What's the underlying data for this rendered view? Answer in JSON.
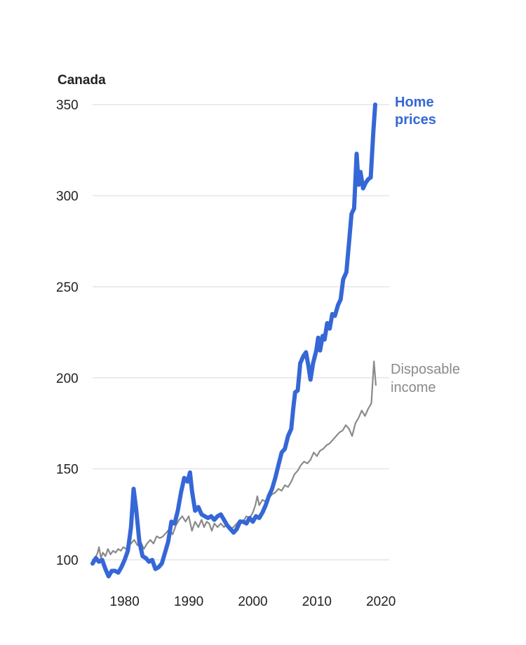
{
  "colors": {
    "home_prices": "#3567d6",
    "disposable_income": "#8a8a8a",
    "grid": "#d9d9d9",
    "text": "#222222"
  },
  "chart_data": {
    "type": "line",
    "title": "Canada",
    "xlabel": "",
    "ylabel": "",
    "xlim": [
      1975,
      2020.3
    ],
    "ylim": [
      86,
      352
    ],
    "x_ticks": [
      1980,
      1990,
      2000,
      2010,
      2020
    ],
    "y_ticks": [
      100,
      150,
      200,
      250,
      300,
      350
    ],
    "grid": true,
    "legend": "direct labels at line ends",
    "series": [
      {
        "key": "home_prices",
        "label_lines": [
          "Home",
          "prices"
        ],
        "points": [
          [
            1975.0,
            98
          ],
          [
            1975.5,
            101
          ],
          [
            1976.0,
            99
          ],
          [
            1976.5,
            100
          ],
          [
            1977.0,
            95
          ],
          [
            1977.5,
            91
          ],
          [
            1978.0,
            94
          ],
          [
            1978.5,
            94
          ],
          [
            1979.0,
            93
          ],
          [
            1979.5,
            96
          ],
          [
            1980.0,
            100
          ],
          [
            1980.5,
            105
          ],
          [
            1981.0,
            118
          ],
          [
            1981.4,
            139
          ],
          [
            1981.8,
            128
          ],
          [
            1982.3,
            110
          ],
          [
            1982.8,
            102
          ],
          [
            1983.3,
            101
          ],
          [
            1983.8,
            99
          ],
          [
            1984.3,
            100
          ],
          [
            1984.8,
            95
          ],
          [
            1985.3,
            96
          ],
          [
            1985.8,
            98
          ],
          [
            1986.3,
            104
          ],
          [
            1986.8,
            110
          ],
          [
            1987.3,
            121
          ],
          [
            1987.8,
            120
          ],
          [
            1988.3,
            127
          ],
          [
            1988.8,
            137
          ],
          [
            1989.3,
            145
          ],
          [
            1989.8,
            143
          ],
          [
            1990.2,
            148
          ],
          [
            1990.5,
            138
          ],
          [
            1991.0,
            127
          ],
          [
            1991.5,
            129
          ],
          [
            1992.0,
            125
          ],
          [
            1992.5,
            124
          ],
          [
            1993.0,
            123
          ],
          [
            1993.5,
            124
          ],
          [
            1994.0,
            122
          ],
          [
            1994.5,
            124
          ],
          [
            1995.0,
            125
          ],
          [
            1995.5,
            122
          ],
          [
            1996.0,
            119
          ],
          [
            1996.5,
            117
          ],
          [
            1997.0,
            115
          ],
          [
            1997.5,
            117
          ],
          [
            1998.0,
            121
          ],
          [
            1998.5,
            121
          ],
          [
            1999.0,
            120
          ],
          [
            1999.5,
            123
          ],
          [
            2000.0,
            121
          ],
          [
            2000.5,
            124
          ],
          [
            2001.0,
            123
          ],
          [
            2001.5,
            126
          ],
          [
            2002.0,
            130
          ],
          [
            2002.5,
            135
          ],
          [
            2003.0,
            139
          ],
          [
            2003.5,
            145
          ],
          [
            2004.0,
            152
          ],
          [
            2004.5,
            159
          ],
          [
            2005.0,
            161
          ],
          [
            2005.5,
            168
          ],
          [
            2006.0,
            172
          ],
          [
            2006.3,
            183
          ],
          [
            2006.6,
            192
          ],
          [
            2007.0,
            193
          ],
          [
            2007.4,
            208
          ],
          [
            2007.9,
            212
          ],
          [
            2008.3,
            214
          ],
          [
            2008.7,
            206
          ],
          [
            2009.0,
            199
          ],
          [
            2009.4,
            208
          ],
          [
            2009.9,
            215
          ],
          [
            2010.2,
            222
          ],
          [
            2010.5,
            215
          ],
          [
            2010.9,
            223
          ],
          [
            2011.2,
            221
          ],
          [
            2011.6,
            230
          ],
          [
            2012.0,
            227
          ],
          [
            2012.4,
            235
          ],
          [
            2012.8,
            234
          ],
          [
            2013.3,
            240
          ],
          [
            2013.7,
            243
          ],
          [
            2014.1,
            254
          ],
          [
            2014.6,
            258
          ],
          [
            2015.0,
            274
          ],
          [
            2015.4,
            290
          ],
          [
            2015.8,
            293
          ],
          [
            2016.2,
            323
          ],
          [
            2016.5,
            306
          ],
          [
            2016.8,
            313
          ],
          [
            2017.2,
            304
          ],
          [
            2017.6,
            307
          ],
          [
            2018.0,
            309
          ],
          [
            2018.4,
            310
          ],
          [
            2018.8,
            335
          ],
          [
            2019.1,
            350
          ]
        ]
      },
      {
        "key": "disposable_income",
        "label_lines": [
          "Disposable",
          "income"
        ],
        "points": [
          [
            1975.0,
            100
          ],
          [
            1975.4,
            101
          ],
          [
            1975.8,
            104
          ],
          [
            1976.0,
            107
          ],
          [
            1976.3,
            101
          ],
          [
            1976.6,
            104
          ],
          [
            1977.0,
            102
          ],
          [
            1977.4,
            106
          ],
          [
            1977.8,
            103
          ],
          [
            1978.2,
            105
          ],
          [
            1978.6,
            104
          ],
          [
            1979.0,
            106
          ],
          [
            1979.4,
            105
          ],
          [
            1979.8,
            107
          ],
          [
            1980.2,
            106
          ],
          [
            1980.6,
            108
          ],
          [
            1981.0,
            109
          ],
          [
            1981.5,
            111
          ],
          [
            1982.0,
            108
          ],
          [
            1982.5,
            110
          ],
          [
            1983.0,
            106
          ],
          [
            1983.5,
            109
          ],
          [
            1984.0,
            111
          ],
          [
            1984.5,
            109
          ],
          [
            1985.0,
            113
          ],
          [
            1985.5,
            112
          ],
          [
            1986.0,
            113
          ],
          [
            1986.5,
            115
          ],
          [
            1987.0,
            117
          ],
          [
            1987.5,
            114
          ],
          [
            1988.0,
            119
          ],
          [
            1988.5,
            122
          ],
          [
            1989.0,
            124
          ],
          [
            1989.5,
            121
          ],
          [
            1990.0,
            124
          ],
          [
            1990.5,
            116
          ],
          [
            1991.0,
            121
          ],
          [
            1991.5,
            118
          ],
          [
            1992.0,
            122
          ],
          [
            1992.4,
            118
          ],
          [
            1992.8,
            121
          ],
          [
            1993.2,
            120
          ],
          [
            1993.6,
            116
          ],
          [
            1994.0,
            120
          ],
          [
            1994.5,
            118
          ],
          [
            1995.0,
            120
          ],
          [
            1995.5,
            118
          ],
          [
            1996.0,
            120
          ],
          [
            1996.5,
            117
          ],
          [
            1997.0,
            118
          ],
          [
            1997.5,
            120
          ],
          [
            1998.0,
            122
          ],
          [
            1998.5,
            121
          ],
          [
            1999.0,
            124
          ],
          [
            1999.5,
            123
          ],
          [
            2000.0,
            126
          ],
          [
            2000.4,
            130
          ],
          [
            2000.7,
            135
          ],
          [
            2001.0,
            130
          ],
          [
            2001.5,
            133
          ],
          [
            2002.0,
            132
          ],
          [
            2002.5,
            134
          ],
          [
            2003.0,
            136
          ],
          [
            2003.5,
            137
          ],
          [
            2004.0,
            139
          ],
          [
            2004.5,
            138
          ],
          [
            2005.0,
            141
          ],
          [
            2005.5,
            140
          ],
          [
            2006.0,
            143
          ],
          [
            2006.5,
            147
          ],
          [
            2007.0,
            149
          ],
          [
            2007.5,
            152
          ],
          [
            2008.0,
            154
          ],
          [
            2008.5,
            153
          ],
          [
            2009.0,
            155
          ],
          [
            2009.5,
            159
          ],
          [
            2010.0,
            157
          ],
          [
            2010.5,
            160
          ],
          [
            2011.0,
            161
          ],
          [
            2011.5,
            163
          ],
          [
            2012.0,
            164
          ],
          [
            2012.5,
            166
          ],
          [
            2013.0,
            168
          ],
          [
            2013.5,
            170
          ],
          [
            2014.0,
            171
          ],
          [
            2014.5,
            174
          ],
          [
            2015.0,
            172
          ],
          [
            2015.5,
            168
          ],
          [
            2016.0,
            175
          ],
          [
            2016.5,
            178
          ],
          [
            2017.0,
            182
          ],
          [
            2017.5,
            179
          ],
          [
            2018.0,
            183
          ],
          [
            2018.5,
            186
          ],
          [
            2018.9,
            209
          ],
          [
            2019.2,
            196
          ]
        ]
      }
    ]
  }
}
